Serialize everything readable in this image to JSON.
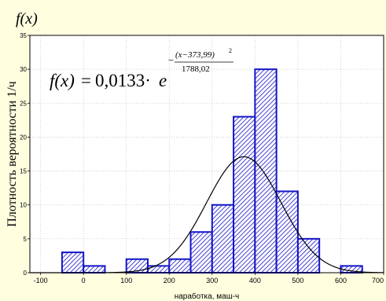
{
  "chart_data": {
    "type": "bar",
    "title": "f(x)",
    "xlabel": "наработка, маш-ч",
    "ylabel": "Плотность вероятности 1/ч",
    "xlim": [
      -125,
      700
    ],
    "ylim": [
      0,
      35
    ],
    "x_ticks": [
      -100,
      0,
      100,
      200,
      300,
      400,
      500,
      600,
      700
    ],
    "y_ticks": [
      0,
      5,
      10,
      15,
      20,
      25,
      30,
      35
    ],
    "grid": true,
    "bin_width": 50,
    "bins": [
      {
        "left": -50,
        "right": 0,
        "value": 3
      },
      {
        "left": 0,
        "right": 50,
        "value": 1
      },
      {
        "left": 100,
        "right": 150,
        "value": 2
      },
      {
        "left": 150,
        "right": 200,
        "value": 1
      },
      {
        "left": 200,
        "right": 250,
        "value": 2
      },
      {
        "left": 250,
        "right": 300,
        "value": 6
      },
      {
        "left": 300,
        "right": 350,
        "value": 10
      },
      {
        "left": 350,
        "right": 400,
        "value": 23
      },
      {
        "left": 400,
        "right": 450,
        "value": 30
      },
      {
        "left": 450,
        "right": 500,
        "value": 12
      },
      {
        "left": 500,
        "right": 550,
        "value": 5
      },
      {
        "left": 600,
        "right": 650,
        "value": 1
      }
    ],
    "fit_curve": {
      "mean": 373.99,
      "denominator": 1788.02,
      "peak": 17.1
    },
    "formula": {
      "lhs": "f(x)",
      "equals": "=",
      "coef": "0,0133·",
      "base": "e",
      "minus": "−",
      "numerator": "(x−373,99)",
      "power": "2",
      "denominator": "1788,02"
    },
    "colors": {
      "bar_stroke": "#1515c8",
      "hatch": "#1515c8",
      "curve": "#000000",
      "grid": "#c8c8c8",
      "axis_bg": "#ffffff",
      "outer_bg": "#ffffe0"
    }
  }
}
